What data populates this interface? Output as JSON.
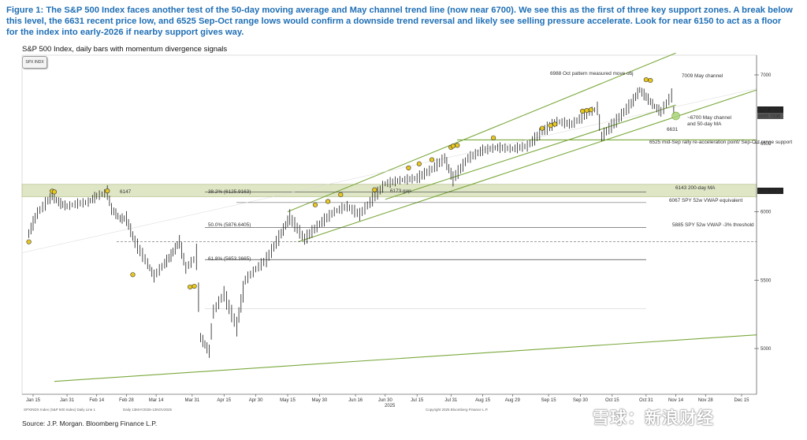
{
  "figure": {
    "caption": "Figure 1: The S&P 500 Index faces another test of the 50-day moving average and May channel trend line (now near 6700). We see this as the first of three key support zones. A break below this level, the 6631 recent price low, and 6525 Sep-Oct range lows would confirm a downside trend reversal and likely see selling pressure accelerate. Look for near 6150 to act as a floor for the index into early-2026 if nearby support gives way.",
    "subtitle": "S&P 500 Index, daily bars with momentum divergence signals",
    "badge": "SPX INDX",
    "source": "Source: J.P. Morgan. Bloomberg Finance L.P.",
    "watermark": "雪球：新浪财经",
    "footer_left": "SPXINDX Index (S&P 500 Index) Daily  Line 1",
    "footer_mid": "Daily 13MAY2025-13NOV2025",
    "footer_right": "Copyright 2025 Bloomberg Finance L.P."
  },
  "chart_data": {
    "type": "bar",
    "title": "",
    "xlabel": "",
    "ylabel": "",
    "ylim": [
      4760,
      7160
    ],
    "x_ticks": [
      "Jan 15",
      "Jan 31",
      "Feb 14",
      "Feb 28",
      "Mar 14",
      "Mar 31",
      "Apr 15",
      "Apr 30",
      "May 15",
      "May 30",
      "Jun 16",
      "Jun 30",
      "Jul 15",
      "Jul 31",
      "Aug 15",
      "Aug 29",
      "Sep 15",
      "Sep 30",
      "Oct 15",
      "Oct 31",
      "Nov 14",
      "Nov 28",
      "Dec 15"
    ],
    "x_year_label": "2025",
    "y_ticks": [
      5000,
      5500,
      6000,
      6500,
      7000
    ],
    "last_price_labels": [
      "6741.8826",
      "6695.7836"
    ],
    "ma200_label": "6143.3330",
    "price_series": [
      {
        "d": "Jan 13",
        "v": 5840
      },
      {
        "d": "Jan 17",
        "v": 5990
      },
      {
        "d": "Jan 22",
        "v": 6080
      },
      {
        "d": "Jan 24",
        "v": 6110
      },
      {
        "d": "Jan 28",
        "v": 6060
      },
      {
        "d": "Jan 31",
        "v": 6040
      },
      {
        "d": "Feb 5",
        "v": 6060
      },
      {
        "d": "Feb 10",
        "v": 6070
      },
      {
        "d": "Feb 14",
        "v": 6115
      },
      {
        "d": "Feb 19",
        "v": 6140
      },
      {
        "d": "Feb 21",
        "v": 6020
      },
      {
        "d": "Feb 25",
        "v": 5950
      },
      {
        "d": "Feb 28",
        "v": 5950
      },
      {
        "d": "Mar 4",
        "v": 5780
      },
      {
        "d": "Mar 10",
        "v": 5620
      },
      {
        "d": "Mar 13",
        "v": 5530
      },
      {
        "d": "Mar 18",
        "v": 5620
      },
      {
        "d": "Mar 21",
        "v": 5680
      },
      {
        "d": "Mar 25",
        "v": 5780
      },
      {
        "d": "Mar 28",
        "v": 5590
      },
      {
        "d": "Apr 2",
        "v": 5670
      },
      {
        "d": "Apr 4",
        "v": 5080
      },
      {
        "d": "Apr 8",
        "v": 4980
      },
      {
        "d": "Apr 10",
        "v": 5270
      },
      {
        "d": "Apr 15",
        "v": 5400
      },
      {
        "d": "Apr 21",
        "v": 5160
      },
      {
        "d": "Apr 25",
        "v": 5500
      },
      {
        "d": "Apr 30",
        "v": 5580
      },
      {
        "d": "May 5",
        "v": 5650
      },
      {
        "d": "May 12",
        "v": 5840
      },
      {
        "d": "May 16",
        "v": 5960
      },
      {
        "d": "May 23",
        "v": 5800
      },
      {
        "d": "May 30",
        "v": 5910
      },
      {
        "d": "Jun 6",
        "v": 6000
      },
      {
        "d": "Jun 12",
        "v": 6040
      },
      {
        "d": "Jun 18",
        "v": 5980
      },
      {
        "d": "Jun 24",
        "v": 6090
      },
      {
        "d": "Jun 30",
        "v": 6205
      },
      {
        "d": "Jul 7",
        "v": 6230
      },
      {
        "d": "Jul 15",
        "v": 6245
      },
      {
        "d": "Jul 22",
        "v": 6310
      },
      {
        "d": "Jul 28",
        "v": 6390
      },
      {
        "d": "Aug 1",
        "v": 6240
      },
      {
        "d": "Aug 8",
        "v": 6390
      },
      {
        "d": "Aug 15",
        "v": 6450
      },
      {
        "d": "Aug 22",
        "v": 6470
      },
      {
        "d": "Aug 29",
        "v": 6460
      },
      {
        "d": "Sep 5",
        "v": 6480
      },
      {
        "d": "Sep 12",
        "v": 6585
      },
      {
        "d": "Sep 19",
        "v": 6660
      },
      {
        "d": "Sep 26",
        "v": 6640
      },
      {
        "d": "Oct 3",
        "v": 6715
      },
      {
        "d": "Oct 8",
        "v": 6755
      },
      {
        "d": "Oct 10",
        "v": 6550
      },
      {
        "d": "Oct 17",
        "v": 6665
      },
      {
        "d": "Oct 24",
        "v": 6790
      },
      {
        "d": "Oct 28",
        "v": 6890
      },
      {
        "d": "Oct 31",
        "v": 6840
      },
      {
        "d": "Nov 4",
        "v": 6770
      },
      {
        "d": "Nov 7",
        "v": 6730
      },
      {
        "d": "Nov 12",
        "v": 6850
      },
      {
        "d": "Nov 13",
        "v": 6740
      }
    ],
    "levels": [
      {
        "value": 6525,
        "label": "6525 mid-Sep rally re-acceleration point/ Sep-Oct range support"
      },
      {
        "value": 6143,
        "label": "6143 200-day MA"
      },
      {
        "value": 6067,
        "label": "6067 SPY 52w VWAP equivalent"
      },
      {
        "value": 5885,
        "label": "5885 SPY 52w VWAP -3% threshold"
      }
    ],
    "fib_labels": [
      "38.2% (6125.9163)",
      "50.0% (5876.6405)",
      "61.8% (5653.3665)"
    ],
    "annotations": [
      "6988 Oct pattern measured move obj",
      "7009 May channel",
      "~6700 May channel and 50-day MA",
      "6631",
      "6147",
      "6173 gap"
    ]
  }
}
